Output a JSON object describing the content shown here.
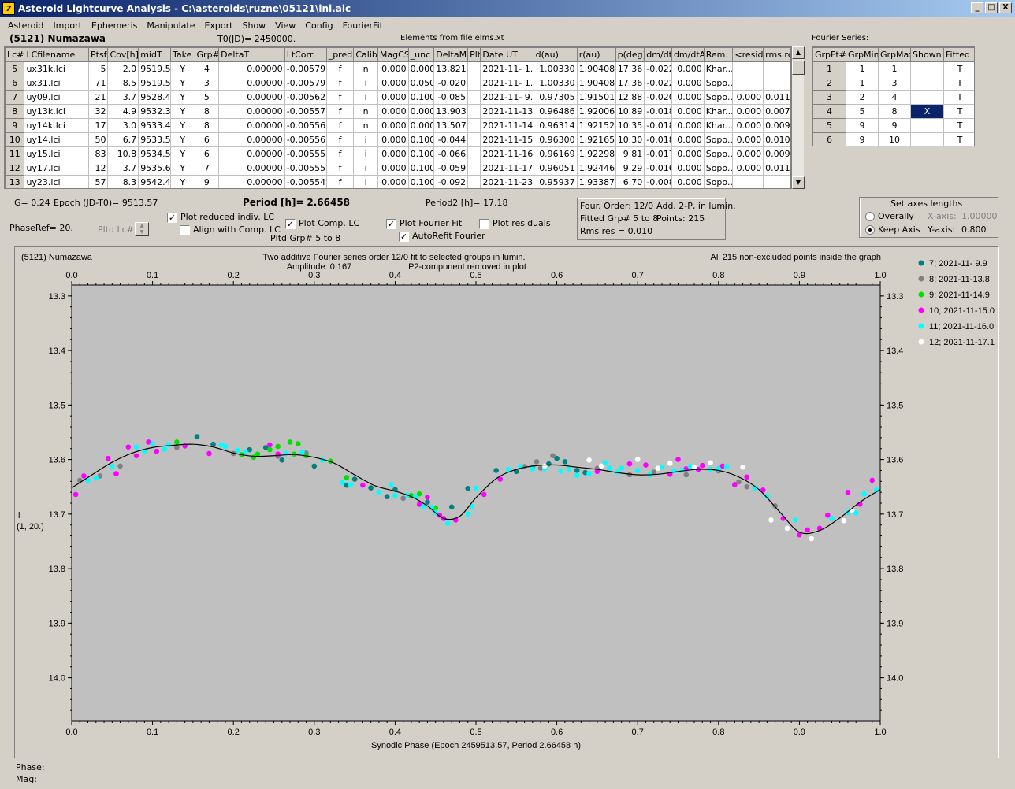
{
  "window": {
    "title": "Asteroid Lightcurve Analysis - C:\\asteroids\\ruzne\\05121\\ini.alc",
    "app_icon_glyph": "7",
    "minimize_glyph": "_",
    "maximize_glyph": "□",
    "close_glyph": "X"
  },
  "menu": [
    "Asteroid",
    "Import",
    "Ephemeris",
    "Manipulate",
    "Export",
    "Show",
    "View",
    "Config",
    "FourierFit"
  ],
  "header": {
    "asteroid_name": "(5121) Numazawa",
    "t0": "T0(JD)= 2450000.",
    "elements": "Elements from file elms.xt",
    "fourier_series_title": "Fourier Series:"
  },
  "lc_table": {
    "columns": [
      "Lc#",
      "LCfilename",
      "Ptsf",
      "Cov[h]",
      "midT",
      "Take",
      "Grp#",
      "DeltaT",
      "LtCorr.",
      "_pred.",
      "Calib.",
      "MagCS",
      "_unc",
      "DeltaM",
      "Plt",
      "Date UT",
      "d(au)",
      "r(au)",
      "p(deg)",
      "dm/dt",
      "dm/dtA",
      "Rem.",
      "<resid>",
      "rms res"
    ],
    "rows": [
      [
        "5",
        "ux31k.lci",
        "5",
        "2.0",
        "9519.5",
        "Y",
        "4",
        "0.00000",
        "-0.00579",
        "f",
        "n",
        "0.000",
        "0.000",
        "13.821",
        "",
        "2021-11- 1.0",
        "1.00330",
        "1.90408",
        "17.36",
        "-0.022",
        "0.000",
        "Khar...",
        "",
        ""
      ],
      [
        "6",
        "ux31.lci",
        "71",
        "8.5",
        "9519.5",
        "Y",
        "3",
        "0.00000",
        "-0.00579",
        "f",
        "i",
        "0.000",
        "0.050",
        "-0.020",
        "",
        "2021-11- 1.0",
        "1.00330",
        "1.90408",
        "17.36",
        "-0.022",
        "0.000",
        "Sopo...",
        "",
        ""
      ],
      [
        "7",
        "uy09.lci",
        "21",
        "3.7",
        "9528.4",
        "Y",
        "5",
        "0.00000",
        "-0.00562",
        "f",
        "i",
        "0.000",
        "0.100",
        "-0.085",
        "",
        "2021-11- 9.9",
        "0.97305",
        "1.91501",
        "12.88",
        "-0.020",
        "0.000",
        "Sopo...",
        "0.000",
        "0.011"
      ],
      [
        "8",
        "uy13k.lci",
        "32",
        "4.9",
        "9532.3",
        "Y",
        "8",
        "0.00000",
        "-0.00557",
        "f",
        "n",
        "0.000",
        "0.000",
        "13.903",
        "",
        "2021-11-13.8",
        "0.96486",
        "1.92006",
        "10.89",
        "-0.018",
        "0.000",
        "Khar...",
        "0.000",
        "0.007"
      ],
      [
        "9",
        "uy14k.lci",
        "17",
        "3.0",
        "9533.4",
        "Y",
        "8",
        "0.00000",
        "-0.00556",
        "f",
        "n",
        "0.000",
        "0.000",
        "13.507",
        "",
        "2021-11-14.9",
        "0.96314",
        "1.92152",
        "10.35",
        "-0.018",
        "0.000",
        "Khar...",
        "0.000",
        "0.009"
      ],
      [
        "10",
        "uy14.lci",
        "50",
        "6.7",
        "9533.5",
        "Y",
        "6",
        "0.00000",
        "-0.00556",
        "f",
        "i",
        "0.000",
        "0.100",
        "-0.044",
        "",
        "2021-11-15.0",
        "0.96300",
        "1.92165",
        "10.30",
        "-0.018",
        "0.000",
        "Sopo...",
        "0.000",
        "0.010"
      ],
      [
        "11",
        "uy15.lci",
        "83",
        "10.8",
        "9534.5",
        "Y",
        "6",
        "0.00000",
        "-0.00555",
        "f",
        "i",
        "0.000",
        "0.100",
        "-0.066",
        "",
        "2021-11-16.0",
        "0.96169",
        "1.92298",
        "9.81",
        "-0.017",
        "0.000",
        "Sopo...",
        "0.000",
        "0.009"
      ],
      [
        "12",
        "uy17.lci",
        "12",
        "3.7",
        "9535.6",
        "Y",
        "7",
        "0.00000",
        "-0.00555",
        "f",
        "i",
        "0.000",
        "0.100",
        "-0.059",
        "",
        "2021-11-17.1",
        "0.96051",
        "1.92446",
        "9.29",
        "-0.016",
        "0.000",
        "Sopo...",
        "0.000",
        "0.011"
      ],
      [
        "13",
        "uy23.lci",
        "57",
        "8.3",
        "9542.4",
        "Y",
        "9",
        "0.00000",
        "-0.00554",
        "f",
        "i",
        "0.000",
        "0.100",
        "-0.092",
        "",
        "2021-11-23.9",
        "0.95937",
        "1.93387",
        "6.70",
        "-0.008",
        "0.000",
        "Sopo...",
        "",
        ""
      ]
    ],
    "scroll_up": "▲",
    "scroll_down": "▼"
  },
  "fourier_table": {
    "columns": [
      "GrpFt#",
      "GrpMin",
      "GrpMax",
      "Shown",
      "Fitted"
    ],
    "rows": [
      [
        "1",
        "1",
        "1",
        "",
        "T"
      ],
      [
        "2",
        "1",
        "3",
        "",
        "T"
      ],
      [
        "3",
        "2",
        "4",
        "",
        "T"
      ],
      [
        "4",
        "5",
        "8",
        "X",
        "T"
      ],
      [
        "5",
        "9",
        "9",
        "",
        "T"
      ],
      [
        "6",
        "9",
        "10",
        "",
        "T"
      ]
    ]
  },
  "params": {
    "g": "G= 0.24",
    "epoch": "Epoch (JD-T0)= 9513.57",
    "period_label": "Period [h]=",
    "period_value": "2.66458",
    "period2": "Period2 [h]= 17.18",
    "phase_ref": "PhaseRef= 20.",
    "pltd_lc": "Pltd Lc#:",
    "pltd_grp": "Pltd Grp#  5  to   8"
  },
  "checkboxes": {
    "plot_reduced": {
      "label": "Plot reduced indiv. LC",
      "checked": true
    },
    "align_comp": {
      "label": "Align with Comp. LC",
      "checked": false
    },
    "plot_comp": {
      "label": "Plot Comp. LC",
      "checked": true
    },
    "plot_fourier": {
      "label": "Plot Fourier Fit",
      "checked": true
    },
    "autorefit": {
      "label": "AutoRefit Fourier",
      "checked": true
    },
    "plot_residuals": {
      "label": "Plot residuals",
      "checked": false
    },
    "check_glyph": "✓"
  },
  "fit_info": {
    "order": "Four. Order: 12/0",
    "add": "Add. 2-P, in lumin.",
    "fitted": "Fitted Grp# 5 to 8",
    "points": "Points: 215",
    "rms": "Rms res     = 0.010"
  },
  "axes_box": {
    "title": "Set axes lengths",
    "overally": "Overally",
    "keep_axis": "Keep Axis",
    "x_axis_label": "X-axis:",
    "x_axis_value": "1.00000",
    "y_axis_label": "Y-axis:",
    "y_axis_value": "0.800"
  },
  "graph": {
    "object": "(5121) Numazawa",
    "desc1": "Two additive Fourier series order 12/0 fit to selected groups in lumin.",
    "desc2": "Amplitude: 0.167",
    "desc3": "P2-component removed in plot",
    "points_note": "All 215 non-excluded points inside the graph",
    "ylabel1": "i",
    "ylabel2": "(1, 20.)",
    "xlabel": "Synodic Phase (Epoch 2459513.57, Period 2.66458 h)",
    "background": "#c0c0c0"
  },
  "status": {
    "phase": "Phase:",
    "mag": "Mag:"
  },
  "chart_data": {
    "type": "scatter",
    "title": "Two additive Fourier series order 12/0 fit to selected groups in lumin.",
    "xlabel": "Synodic Phase (Epoch 2459513.57, Period 2.66458 h)",
    "ylabel": "i (1, 20.)",
    "xlim": [
      0.0,
      1.0
    ],
    "ylim": [
      14.08,
      13.28
    ],
    "y_inverted": true,
    "x_ticks": [
      "0.0",
      "0.1",
      "0.2",
      "0.3",
      "0.4",
      "0.5",
      "0.6",
      "0.7",
      "0.8",
      "0.9",
      "1.0"
    ],
    "y_ticks": [
      "13.3",
      "13.4",
      "13.5",
      "13.6",
      "13.7",
      "13.8",
      "13.9",
      "14.0"
    ],
    "legend_position": "right",
    "fit_curve": {
      "x": [
        0.0,
        0.025,
        0.05,
        0.075,
        0.1,
        0.125,
        0.15,
        0.175,
        0.2,
        0.225,
        0.25,
        0.275,
        0.3,
        0.325,
        0.35,
        0.375,
        0.4,
        0.42,
        0.44,
        0.46,
        0.48,
        0.5,
        0.525,
        0.55,
        0.575,
        0.6,
        0.625,
        0.65,
        0.675,
        0.7,
        0.725,
        0.75,
        0.775,
        0.8,
        0.825,
        0.85,
        0.875,
        0.9,
        0.925,
        0.95,
        0.975,
        1.0
      ],
      "y": [
        13.652,
        13.628,
        13.605,
        13.588,
        13.578,
        13.574,
        13.572,
        13.577,
        13.588,
        13.594,
        13.593,
        13.591,
        13.596,
        13.607,
        13.628,
        13.648,
        13.658,
        13.668,
        13.685,
        13.708,
        13.704,
        13.67,
        13.635,
        13.618,
        13.611,
        13.61,
        13.614,
        13.618,
        13.624,
        13.628,
        13.627,
        13.622,
        13.618,
        13.62,
        13.632,
        13.655,
        13.695,
        13.733,
        13.73,
        13.707,
        13.678,
        13.655
      ]
    },
    "series": [
      {
        "name": "7; 2021-11- 9.9",
        "color": "#008080",
        "x": [
          0.155,
          0.175,
          0.22,
          0.24,
          0.26,
          0.3,
          0.34,
          0.35,
          0.37,
          0.39,
          0.4,
          0.44,
          0.47,
          0.49,
          0.525,
          0.55,
          0.57,
          0.59,
          0.6,
          0.61,
          0.625,
          0.635
        ],
        "y": [
          13.558,
          13.572,
          13.582,
          13.578,
          13.601,
          13.612,
          13.647,
          13.636,
          13.652,
          13.668,
          13.655,
          13.678,
          13.687,
          13.653,
          13.62,
          13.622,
          13.615,
          13.608,
          13.598,
          13.604,
          13.62,
          13.624
        ]
      },
      {
        "name": "8; 2021-11-13.8",
        "color": "#808080",
        "x": [
          0.01,
          0.035,
          0.06,
          0.13,
          0.2,
          0.255,
          0.29,
          0.41,
          0.42,
          0.56,
          0.575,
          0.58,
          0.595,
          0.65,
          0.69,
          0.72,
          0.76,
          0.8,
          0.82,
          0.825,
          0.835,
          0.87
        ],
        "y": [
          13.638,
          13.63,
          13.612,
          13.578,
          13.589,
          13.594,
          13.588,
          13.671,
          13.667,
          13.613,
          13.604,
          13.616,
          13.593,
          13.616,
          13.628,
          13.623,
          13.628,
          13.621,
          13.646,
          13.641,
          13.65,
          13.685
        ]
      },
      {
        "name": "9; 2021-11-14.9",
        "color": "#00e000",
        "x": [
          0.13,
          0.21,
          0.225,
          0.23,
          0.245,
          0.255,
          0.27,
          0.275,
          0.28,
          0.29,
          0.32,
          0.34,
          0.42,
          0.43,
          0.45
        ],
        "y": [
          13.568,
          13.591,
          13.596,
          13.59,
          13.582,
          13.576,
          13.568,
          13.59,
          13.571,
          13.593,
          13.603,
          13.633,
          13.666,
          13.663,
          13.689
        ]
      },
      {
        "name": "10; 2021-11-15.0",
        "color": "#ff00ff",
        "x": [
          0.005,
          0.015,
          0.045,
          0.055,
          0.07,
          0.08,
          0.095,
          0.105,
          0.14,
          0.17,
          0.245,
          0.255,
          0.36,
          0.43,
          0.44,
          0.455,
          0.46,
          0.475,
          0.51,
          0.53,
          0.65,
          0.69,
          0.71,
          0.74,
          0.75,
          0.76,
          0.775,
          0.78,
          0.805,
          0.82,
          0.835,
          0.855,
          0.88,
          0.9,
          0.91,
          0.925,
          0.935,
          0.96,
          0.975,
          0.99
        ],
        "y": [
          13.664,
          13.63,
          13.598,
          13.626,
          13.577,
          13.593,
          13.568,
          13.585,
          13.575,
          13.589,
          13.573,
          13.59,
          13.647,
          13.682,
          13.669,
          13.702,
          13.708,
          13.711,
          13.664,
          13.636,
          13.622,
          13.608,
          13.61,
          13.627,
          13.6,
          13.617,
          13.618,
          13.611,
          13.612,
          13.646,
          13.632,
          13.656,
          13.708,
          13.738,
          13.729,
          13.726,
          13.702,
          13.66,
          13.682,
          13.638
        ]
      },
      {
        "name": "11; 2021-11-16.0",
        "color": "#00ffff",
        "x": [
          0.02,
          0.03,
          0.05,
          0.08,
          0.09,
          0.1,
          0.115,
          0.12,
          0.185,
          0.19,
          0.205,
          0.215,
          0.265,
          0.285,
          0.31,
          0.335,
          0.345,
          0.38,
          0.395,
          0.4,
          0.415,
          0.425,
          0.435,
          0.445,
          0.45,
          0.465,
          0.49,
          0.495,
          0.5,
          0.54,
          0.555,
          0.57,
          0.585,
          0.605,
          0.615,
          0.625,
          0.64,
          0.66,
          0.665,
          0.675,
          0.68,
          0.7,
          0.715,
          0.73,
          0.745,
          0.755,
          0.765,
          0.79,
          0.8,
          0.81,
          0.845,
          0.86,
          0.895,
          0.94,
          0.96,
          0.97,
          0.98,
          0.995
        ],
        "y": [
          13.638,
          13.634,
          13.613,
          13.577,
          13.584,
          13.571,
          13.581,
          13.573,
          13.573,
          13.576,
          13.583,
          13.586,
          13.589,
          13.586,
          13.601,
          13.642,
          13.646,
          13.66,
          13.646,
          13.666,
          13.665,
          13.668,
          13.686,
          13.688,
          13.697,
          13.717,
          13.7,
          13.686,
          13.653,
          13.618,
          13.613,
          13.617,
          13.617,
          13.621,
          13.617,
          13.629,
          13.626,
          13.606,
          13.616,
          13.623,
          13.616,
          13.62,
          13.628,
          13.614,
          13.621,
          13.62,
          13.613,
          13.618,
          13.617,
          13.613,
          13.652,
          13.667,
          13.711,
          13.708,
          13.697,
          13.698,
          13.663,
          13.656
        ]
      },
      {
        "name": "12; 2021-11-17.1",
        "color": "#ffffff",
        "x": [
          0.585,
          0.64,
          0.655,
          0.7,
          0.725,
          0.74,
          0.77,
          0.79,
          0.83,
          0.865,
          0.885,
          0.915,
          0.955,
          0.965
        ],
        "y": [
          13.612,
          13.601,
          13.612,
          13.6,
          13.616,
          13.607,
          13.614,
          13.606,
          13.614,
          13.711,
          13.726,
          13.745,
          13.712,
          13.693
        ]
      }
    ]
  }
}
